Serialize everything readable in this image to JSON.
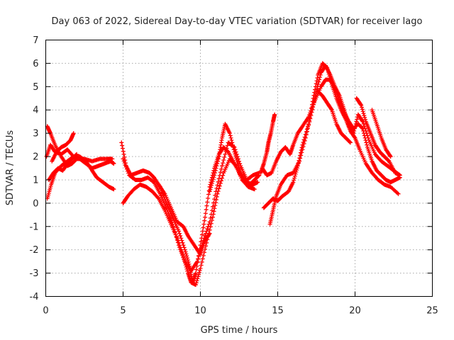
{
  "chart_data": {
    "type": "scatter",
    "title": "Day 063 of 2022, Sidereal Day-to-day VTEC variation (SDTVAR) for receiver lago",
    "xlabel": "GPS time / hours",
    "ylabel": "SDTVAR / TECUs",
    "xlim": [
      0,
      25
    ],
    "ylim": [
      -4,
      7
    ],
    "xticks": [
      0,
      5,
      10,
      15,
      20,
      25
    ],
    "yticks": [
      -4,
      -3,
      -2,
      -1,
      0,
      1,
      2,
      3,
      4,
      5,
      6,
      7
    ],
    "grid": true,
    "marker": "+",
    "color": "#ff0000",
    "tracks": [
      [
        [
          0.05,
          2.0
        ],
        [
          0.3,
          2.5
        ],
        [
          0.6,
          2.2
        ],
        [
          1.0,
          2.1
        ],
        [
          1.4,
          2.3
        ],
        [
          1.8,
          2.0
        ],
        [
          2.2,
          1.9
        ],
        [
          2.6,
          1.7
        ],
        [
          3.0,
          1.5
        ],
        [
          3.4,
          1.6
        ],
        [
          3.8,
          1.7
        ],
        [
          4.2,
          1.8
        ],
        [
          4.4,
          1.7
        ]
      ],
      [
        [
          0.1,
          3.3
        ],
        [
          0.3,
          3.0
        ],
        [
          0.6,
          2.5
        ],
        [
          1.0,
          2.0
        ],
        [
          1.4,
          1.6
        ],
        [
          1.7,
          1.7
        ],
        [
          2.0,
          1.9
        ],
        [
          2.5,
          1.9
        ],
        [
          3.0,
          1.8
        ],
        [
          3.5,
          1.9
        ],
        [
          4.0,
          1.9
        ],
        [
          4.3,
          1.9
        ]
      ],
      [
        [
          0.1,
          0.2
        ],
        [
          0.35,
          0.8
        ],
        [
          0.6,
          1.3
        ],
        [
          1.0,
          1.6
        ],
        [
          1.4,
          1.8
        ],
        [
          1.8,
          2.0
        ],
        [
          2.2,
          2.0
        ],
        [
          2.6,
          1.8
        ],
        [
          3.0,
          1.4
        ],
        [
          3.3,
          1.1
        ],
        [
          3.7,
          0.9
        ],
        [
          4.1,
          0.7
        ],
        [
          4.4,
          0.6
        ]
      ],
      [
        [
          0.4,
          1.8
        ],
        [
          0.7,
          2.2
        ],
        [
          1.0,
          2.4
        ],
        [
          1.3,
          2.5
        ],
        [
          1.6,
          2.7
        ],
        [
          1.8,
          3.0
        ]
      ],
      [
        [
          0.2,
          1.0
        ],
        [
          0.5,
          1.3
        ],
        [
          0.8,
          1.5
        ],
        [
          1.1,
          1.4
        ],
        [
          1.4,
          1.7
        ],
        [
          1.7,
          1.9
        ],
        [
          2.0,
          2.1
        ]
      ],
      [
        [
          4.9,
          2.6
        ],
        [
          5.2,
          1.6
        ],
        [
          5.5,
          1.2
        ],
        [
          5.9,
          1.3
        ],
        [
          6.3,
          1.4
        ],
        [
          6.7,
          1.3
        ],
        [
          7.0,
          1.1
        ],
        [
          7.4,
          0.7
        ],
        [
          7.8,
          0.0
        ],
        [
          8.2,
          -0.6
        ],
        [
          8.6,
          -1.2
        ],
        [
          9.0,
          -2.0
        ],
        [
          9.3,
          -2.7
        ],
        [
          9.5,
          -3.4
        ],
        [
          9.7,
          -3.0
        ],
        [
          10.0,
          -1.8
        ],
        [
          10.3,
          -0.6
        ],
        [
          10.6,
          0.7
        ],
        [
          10.9,
          1.5
        ],
        [
          11.2,
          2.1
        ],
        [
          11.5,
          2.4
        ],
        [
          11.8,
          2.2
        ],
        [
          12.2,
          1.7
        ],
        [
          12.6,
          1.2
        ],
        [
          13.0,
          0.9
        ],
        [
          13.4,
          0.8
        ],
        [
          13.7,
          0.9
        ]
      ],
      [
        [
          5.0,
          0.0
        ],
        [
          5.3,
          0.3
        ],
        [
          5.7,
          0.6
        ],
        [
          6.1,
          0.8
        ],
        [
          6.5,
          0.7
        ],
        [
          6.9,
          0.5
        ],
        [
          7.3,
          0.2
        ],
        [
          7.7,
          -0.3
        ],
        [
          8.1,
          -0.9
        ],
        [
          8.5,
          -1.5
        ],
        [
          8.9,
          -2.3
        ],
        [
          9.2,
          -3.0
        ],
        [
          9.4,
          -3.4
        ],
        [
          9.7,
          -3.5
        ],
        [
          10.0,
          -2.8
        ],
        [
          10.4,
          -1.7
        ],
        [
          10.8,
          -0.6
        ],
        [
          11.1,
          0.4
        ],
        [
          11.5,
          1.3
        ],
        [
          11.9,
          1.9
        ],
        [
          12.3,
          1.6
        ],
        [
          12.7,
          1.0
        ],
        [
          13.1,
          0.7
        ],
        [
          13.5,
          0.6
        ]
      ],
      [
        [
          5.0,
          1.9
        ],
        [
          5.4,
          1.2
        ],
        [
          5.8,
          1.0
        ],
        [
          6.2,
          1.0
        ],
        [
          6.6,
          1.1
        ],
        [
          7.0,
          0.9
        ],
        [
          7.4,
          0.4
        ],
        [
          7.8,
          -0.2
        ],
        [
          8.2,
          -0.9
        ],
        [
          8.6,
          -1.8
        ],
        [
          9.0,
          -2.5
        ],
        [
          9.4,
          -2.9
        ],
        [
          9.8,
          -2.5
        ],
        [
          10.2,
          -1.6
        ],
        [
          10.6,
          -0.8
        ],
        [
          11.0,
          0.5
        ],
        [
          11.4,
          1.6
        ],
        [
          11.8,
          2.6
        ],
        [
          12.2,
          2.4
        ],
        [
          12.6,
          1.6
        ],
        [
          13.0,
          1.0
        ],
        [
          13.4,
          1.2
        ],
        [
          13.8,
          1.3
        ]
      ],
      [
        [
          7.3,
          0.8
        ],
        [
          7.7,
          0.4
        ],
        [
          8.1,
          -0.2
        ],
        [
          8.5,
          -0.8
        ],
        [
          8.9,
          -1.0
        ],
        [
          9.2,
          -1.4
        ],
        [
          9.6,
          -1.8
        ],
        [
          10.0,
          -2.2
        ],
        [
          10.3,
          -1.6
        ],
        [
          10.6,
          -1.3
        ]
      ],
      [
        [
          10.6,
          0.5
        ],
        [
          10.9,
          1.2
        ],
        [
          11.2,
          2.0
        ],
        [
          11.4,
          2.8
        ],
        [
          11.6,
          3.4
        ],
        [
          11.9,
          3.0
        ],
        [
          12.2,
          2.2
        ],
        [
          12.5,
          1.5
        ],
        [
          12.8,
          1.0
        ],
        [
          13.2,
          0.8
        ],
        [
          13.5,
          1.0
        ],
        [
          13.8,
          1.2
        ]
      ],
      [
        [
          13.9,
          1.3
        ],
        [
          14.1,
          1.7
        ],
        [
          14.3,
          2.2
        ],
        [
          14.4,
          2.6
        ],
        [
          14.55,
          3.0
        ],
        [
          14.7,
          3.5
        ],
        [
          14.8,
          3.8
        ]
      ],
      [
        [
          14.0,
          1.5
        ],
        [
          14.3,
          1.2
        ],
        [
          14.6,
          1.3
        ],
        [
          14.9,
          1.8
        ],
        [
          15.2,
          2.2
        ],
        [
          15.5,
          2.4
        ],
        [
          15.8,
          2.1
        ],
        [
          16.0,
          2.5
        ],
        [
          16.3,
          3.0
        ],
        [
          16.6,
          3.3
        ],
        [
          17.0,
          3.7
        ],
        [
          17.4,
          4.4
        ],
        [
          17.8,
          5.0
        ],
        [
          18.1,
          5.3
        ],
        [
          18.4,
          5.3
        ],
        [
          18.7,
          4.9
        ],
        [
          19.0,
          4.4
        ],
        [
          19.3,
          3.9
        ],
        [
          19.6,
          3.5
        ],
        [
          19.9,
          3.2
        ],
        [
          20.2,
          3.4
        ],
        [
          20.5,
          3.2
        ],
        [
          20.8,
          2.4
        ],
        [
          21.1,
          1.8
        ],
        [
          21.4,
          1.4
        ],
        [
          21.7,
          1.2
        ],
        [
          22.0,
          1.0
        ],
        [
          22.3,
          0.9
        ],
        [
          22.6,
          1.0
        ],
        [
          22.9,
          1.1
        ]
      ],
      [
        [
          14.1,
          -0.2
        ],
        [
          14.4,
          0.0
        ],
        [
          14.7,
          0.2
        ],
        [
          15.0,
          0.1
        ],
        [
          15.3,
          0.3
        ],
        [
          15.7,
          0.5
        ],
        [
          16.0,
          0.9
        ],
        [
          16.3,
          1.6
        ],
        [
          16.6,
          2.5
        ],
        [
          17.0,
          3.4
        ],
        [
          17.3,
          4.5
        ],
        [
          17.6,
          5.5
        ],
        [
          17.9,
          6.0
        ],
        [
          18.2,
          5.8
        ],
        [
          18.5,
          5.1
        ],
        [
          18.8,
          4.5
        ],
        [
          19.1,
          4.0
        ],
        [
          19.4,
          3.6
        ],
        [
          19.7,
          3.1
        ],
        [
          20.0,
          2.8
        ],
        [
          20.3,
          2.3
        ],
        [
          20.7,
          1.7
        ],
        [
          21.1,
          1.3
        ],
        [
          21.5,
          1.0
        ],
        [
          21.9,
          0.8
        ],
        [
          22.3,
          0.7
        ],
        [
          22.8,
          0.4
        ]
      ],
      [
        [
          14.5,
          -0.9
        ],
        [
          14.7,
          -0.3
        ],
        [
          14.9,
          0.3
        ],
        [
          15.2,
          0.8
        ],
        [
          15.6,
          1.2
        ],
        [
          16.0,
          1.3
        ],
        [
          16.4,
          1.8
        ],
        [
          16.8,
          2.8
        ],
        [
          17.2,
          3.9
        ],
        [
          17.5,
          4.8
        ],
        [
          17.8,
          5.6
        ],
        [
          18.1,
          5.9
        ],
        [
          18.4,
          5.5
        ],
        [
          18.7,
          5.0
        ],
        [
          19.0,
          4.6
        ],
        [
          19.3,
          4.0
        ],
        [
          19.6,
          3.3
        ],
        [
          19.9,
          3.0
        ],
        [
          20.2,
          3.8
        ],
        [
          20.5,
          3.5
        ],
        [
          20.9,
          2.7
        ],
        [
          21.3,
          2.1
        ],
        [
          21.7,
          1.8
        ],
        [
          22.1,
          1.6
        ],
        [
          22.5,
          1.4
        ],
        [
          22.9,
          1.2
        ]
      ],
      [
        [
          17.6,
          4.8
        ],
        [
          17.9,
          4.6
        ],
        [
          18.2,
          4.3
        ],
        [
          18.5,
          4.0
        ],
        [
          18.8,
          3.4
        ],
        [
          19.1,
          3.0
        ],
        [
          19.4,
          2.8
        ],
        [
          19.7,
          2.6
        ]
      ],
      [
        [
          20.1,
          4.5
        ],
        [
          20.4,
          4.2
        ],
        [
          20.7,
          3.5
        ],
        [
          21.0,
          3.0
        ],
        [
          21.3,
          2.5
        ],
        [
          21.6,
          2.2
        ],
        [
          21.9,
          2.0
        ],
        [
          22.2,
          1.8
        ],
        [
          22.6,
          1.3
        ],
        [
          22.9,
          1.2
        ]
      ],
      [
        [
          21.1,
          4.0
        ],
        [
          21.4,
          3.4
        ],
        [
          21.7,
          2.8
        ],
        [
          22.0,
          2.3
        ],
        [
          22.3,
          2.0
        ]
      ]
    ]
  }
}
